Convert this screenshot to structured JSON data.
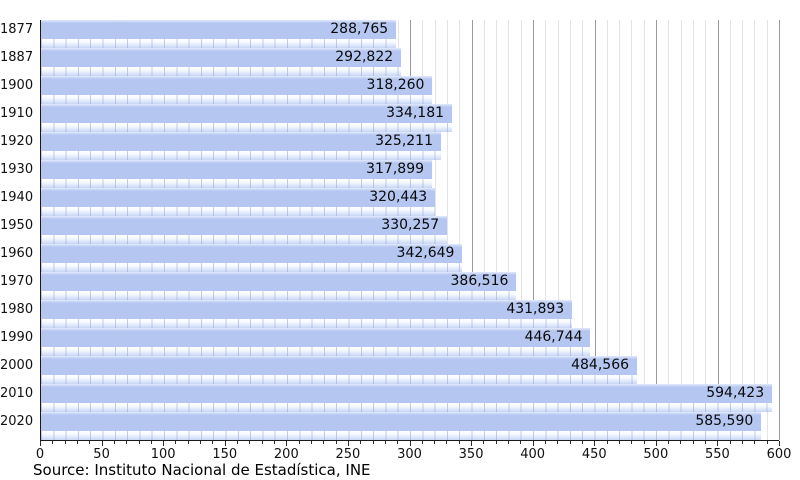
{
  "chart_data": {
    "type": "bar",
    "orientation": "horizontal",
    "title": "",
    "categories": [
      "1877",
      "1887",
      "1900",
      "1910",
      "1920",
      "1930",
      "1940",
      "1950",
      "1960",
      "1970",
      "1980",
      "1990",
      "2000",
      "2010",
      "2020"
    ],
    "values": [
      288765,
      292822,
      318260,
      334181,
      325211,
      317899,
      320443,
      330257,
      342649,
      386516,
      431893,
      446744,
      484566,
      594423,
      585590
    ],
    "value_labels": [
      "288,765",
      "292,822",
      "318,260",
      "334,181",
      "325,211",
      "317,899",
      "320,443",
      "330,257",
      "342,649",
      "386,516",
      "431,893",
      "446,744",
      "484,566",
      "594,423",
      "585,590"
    ],
    "x_axis": {
      "min": 0,
      "max": 600,
      "major_tick_step": 50,
      "minor_tick_step": 10,
      "tick_labels": [
        "0",
        "50",
        "100",
        "150",
        "200",
        "250",
        "300",
        "350",
        "400",
        "450",
        "500",
        "550",
        "600"
      ],
      "unit_scale": "thousands"
    },
    "grid": {
      "vertical_minor": true,
      "vertical_major": true,
      "horizontal": false
    },
    "legend": null,
    "source_caption": "Source: Instituto Nacional de Estadística, INE",
    "colors": {
      "bar_fill": "#b5c7f1",
      "bar_highlight": "#e2eafb",
      "bar_shine_bottom": "#c8d6f6",
      "grid_minor": "#e4e4e4",
      "grid_major": "#9a9a9a",
      "axis": "#1a1a1a",
      "label_text": "#111111"
    }
  }
}
